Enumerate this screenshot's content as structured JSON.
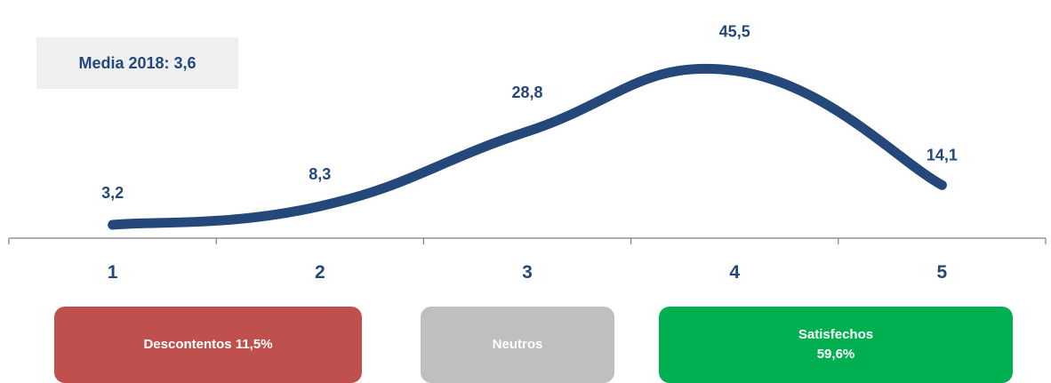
{
  "media_label": "Media 2018: 3,6",
  "colors": {
    "line": "#24487a",
    "label": "#24487a",
    "axis": "#7f7f7f",
    "descontentos": "#c0504d",
    "neutros": "#bfbfbf",
    "satisfechos": "#00b050"
  },
  "segments": {
    "descontentos": "Descontentos 11,5%",
    "neutros": "Neutros",
    "satisfechos_title": "Satisfechos",
    "satisfechos_value": "59,6%"
  },
  "chart_data": {
    "type": "line",
    "categories": [
      "1",
      "2",
      "3",
      "4",
      "5"
    ],
    "values": [
      3.2,
      8.3,
      28.8,
      45.5,
      14.1
    ],
    "value_labels": [
      "3,2",
      "8,3",
      "28,8",
      "45,5",
      "14,1"
    ],
    "title": "",
    "xlabel": "",
    "ylabel": "",
    "smooth": true,
    "grid": false,
    "legend": "none"
  }
}
